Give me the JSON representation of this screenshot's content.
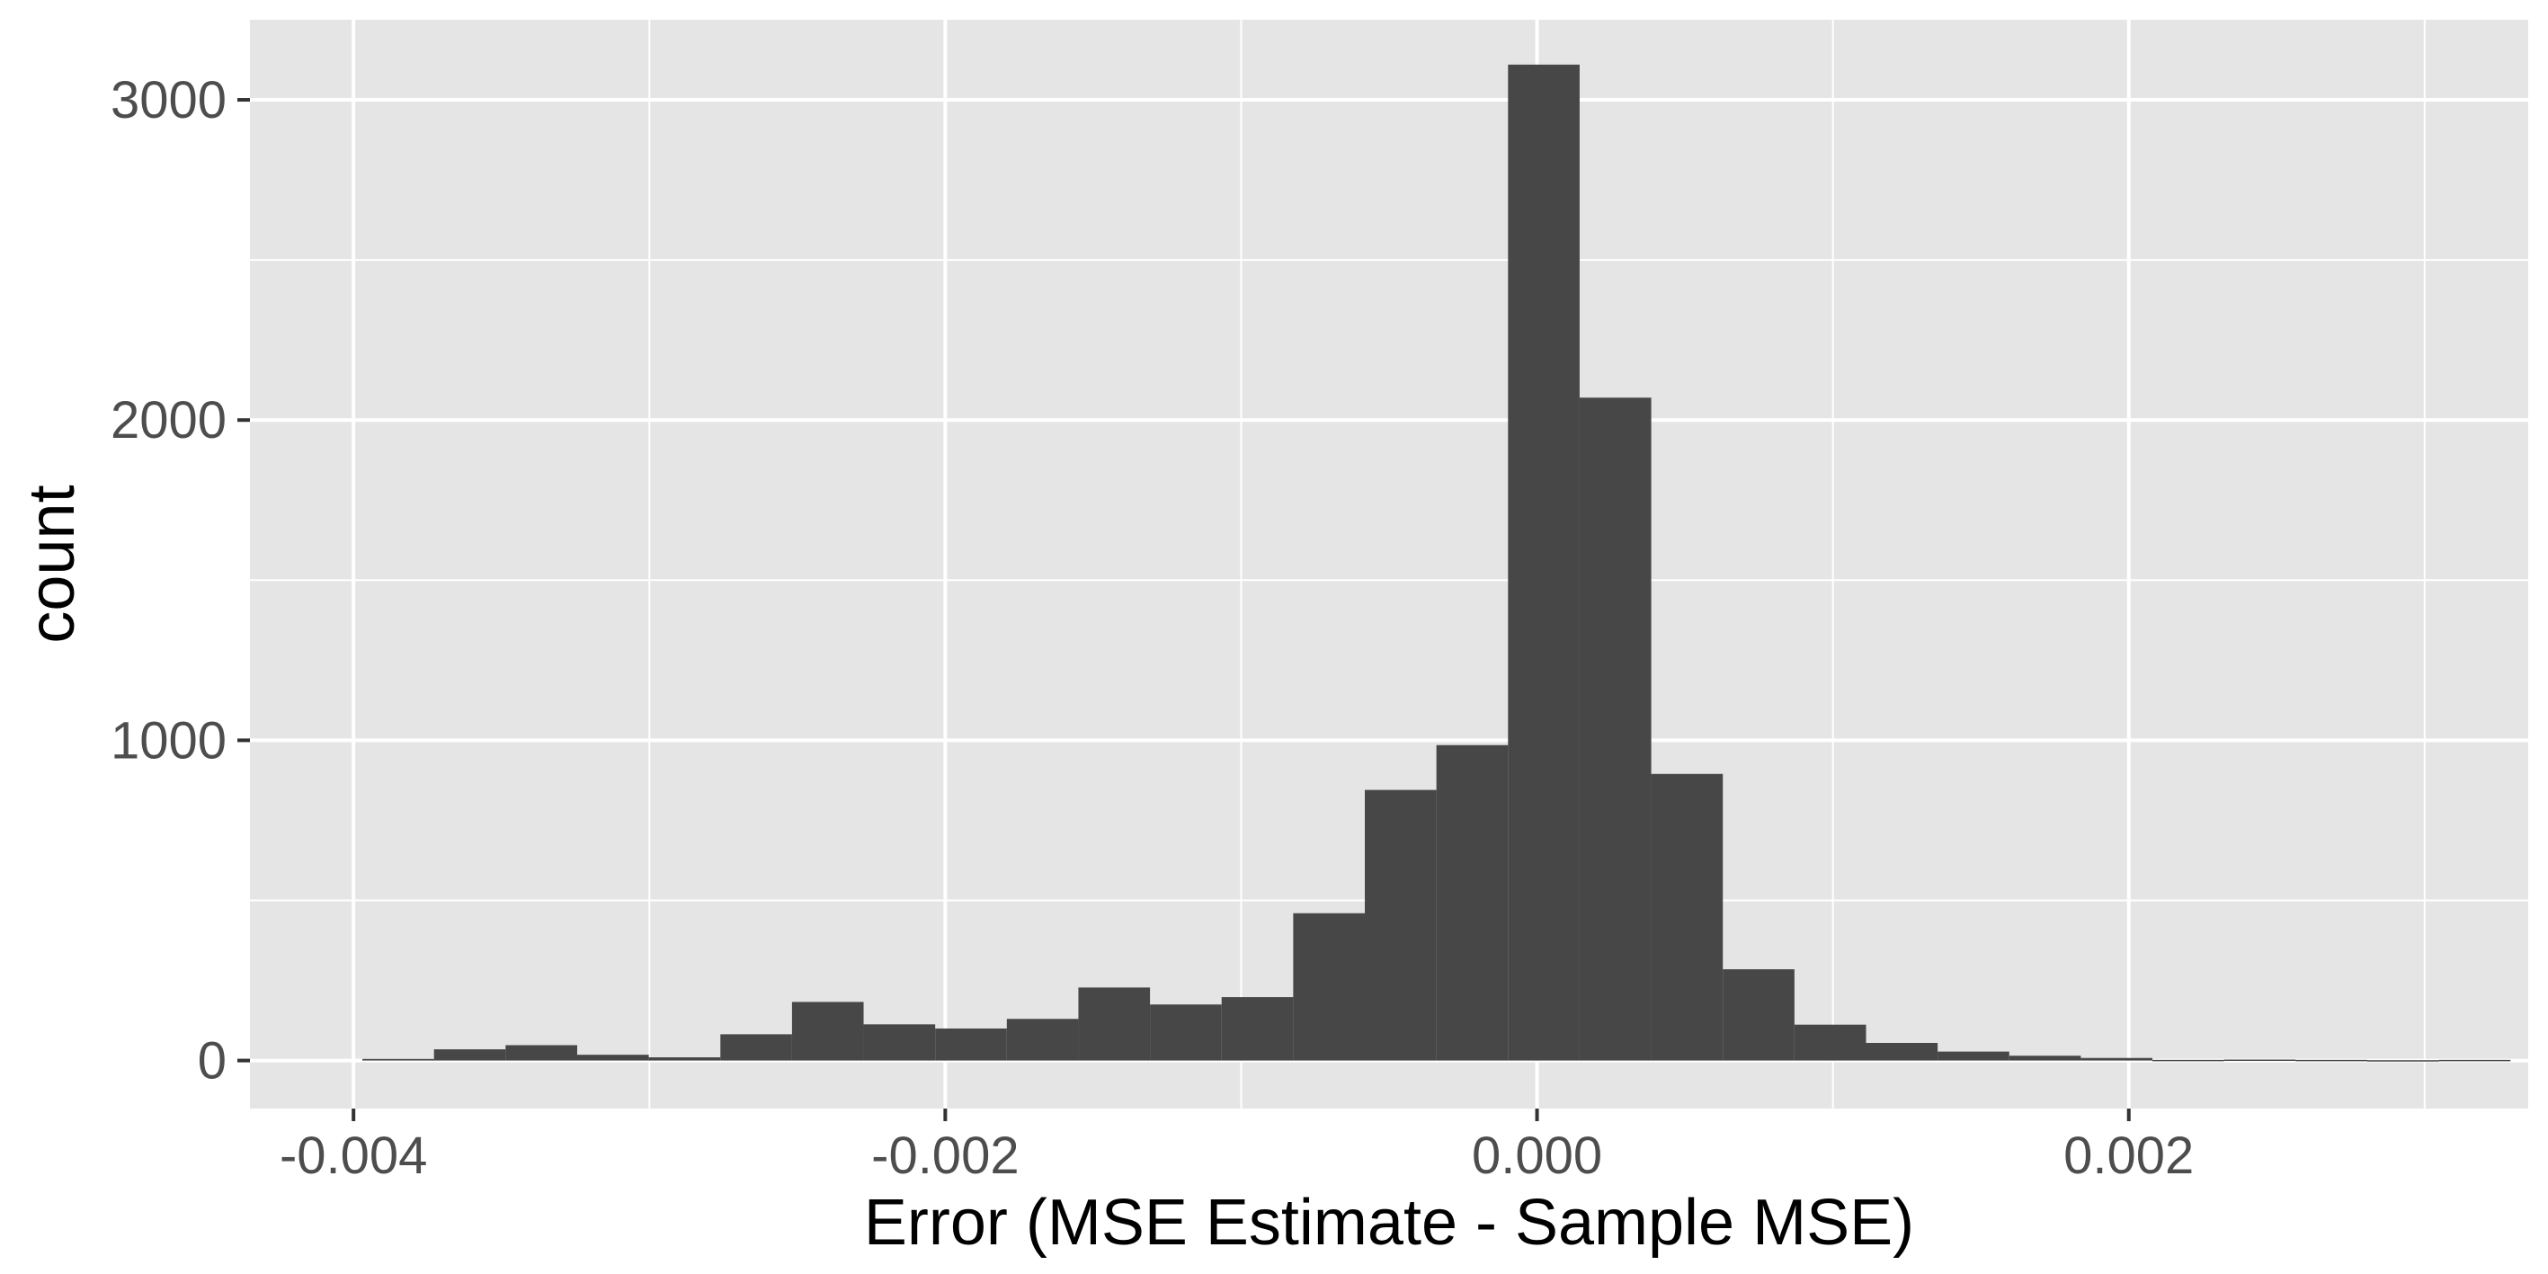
{
  "chart_data": {
    "type": "bar",
    "title": "",
    "xlabel": "Error (MSE Estimate - Sample MSE)",
    "ylabel": "count",
    "xlim": [
      -0.00435,
      0.00335
    ],
    "ylim": [
      -150,
      3250
    ],
    "x_ticks": [
      -0.004,
      -0.002,
      0.0,
      0.002
    ],
    "x_tick_labels": [
      "-0.004",
      "-0.002",
      "0.000",
      "0.002"
    ],
    "y_ticks": [
      0,
      1000,
      2000,
      3000
    ],
    "y_tick_labels": [
      "0",
      "1000",
      "2000",
      "3000"
    ],
    "grid": true,
    "bin_width": 0.000242,
    "bin_starts": [
      -0.00397,
      -0.003728,
      -0.003486,
      -0.003244,
      -0.003002,
      -0.00276,
      -0.002518,
      -0.002276,
      -0.002034,
      -0.001792,
      -0.00155,
      -0.001308,
      -0.001066,
      -0.000824,
      -0.000582,
      -0.00034,
      -9.8e-05,
      0.000144,
      0.000386,
      0.000628,
      0.00087,
      0.001112,
      0.001354,
      0.001596,
      0.001838,
      0.00208,
      0.002322,
      0.002564,
      0.002806,
      0.003048
    ],
    "values": [
      5,
      35,
      48,
      18,
      10,
      82,
      183,
      113,
      100,
      130,
      228,
      175,
      198,
      460,
      845,
      985,
      3110,
      2070,
      895,
      285,
      112,
      55,
      28,
      15,
      8,
      2,
      3,
      2,
      1,
      2
    ],
    "bar_color": "#474747",
    "panel_background": "#e5e5e5",
    "grid_color": "#ffffff"
  }
}
